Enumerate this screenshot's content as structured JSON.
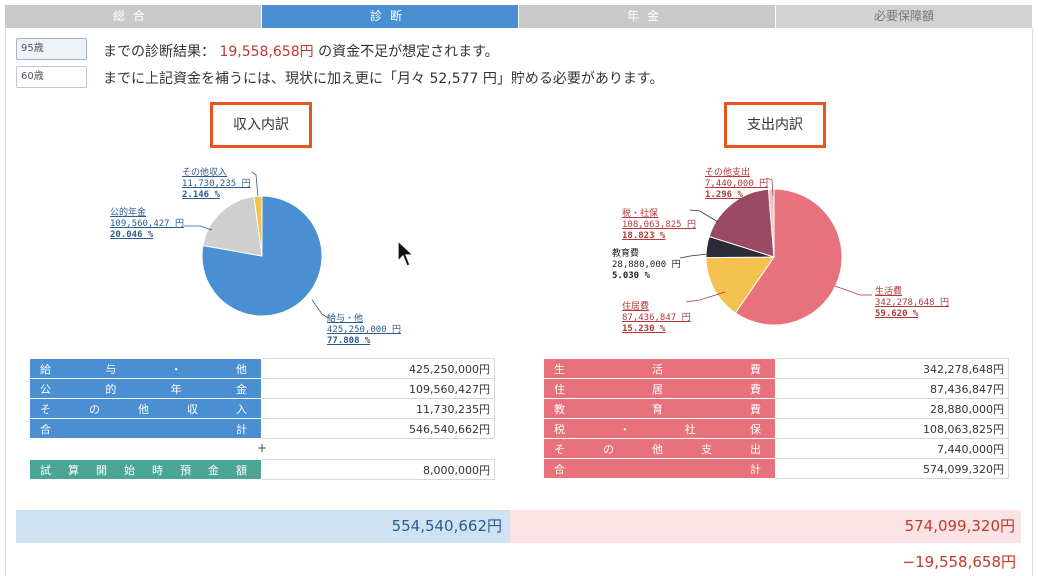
{
  "tabs": [
    {
      "label": "総合"
    },
    {
      "label": "診断"
    },
    {
      "label": "年金"
    },
    {
      "label": "必要保障額"
    }
  ],
  "age_options": [
    {
      "label": "95歳",
      "selected": true
    },
    {
      "label": "60歳",
      "selected": false
    }
  ],
  "diagnosis": {
    "line1_prefix": "までの診断結果：",
    "line1_amount": "19,558,658円",
    "line1_suffix": "の資金不足が想定されます。",
    "line2": "までに上記資金を補うには、現状に加え更に「月々 52,577 円」貯める必要があります。"
  },
  "income": {
    "title": "収入内訳",
    "slices": [
      {
        "name": "給与・他",
        "amount": "425,250,000 円",
        "percent": "77.808 %",
        "value": 77.808,
        "color": "#4a8fd1"
      },
      {
        "name": "公的年金",
        "amount": "109,560,427 円",
        "percent": "20.046 %",
        "value": 20.046,
        "color": "#cfcfcf"
      },
      {
        "name": "その他収入",
        "amount": "11,730,235 円",
        "percent": "2.146 %",
        "value": 2.146,
        "color": "#f2c14e"
      }
    ],
    "table": [
      {
        "label": "給与・他",
        "value": "425,250,000円"
      },
      {
        "label": "公的年金",
        "value": "109,560,427円"
      },
      {
        "label": "その他収入",
        "value": "11,730,235円"
      },
      {
        "label": "合計",
        "value": "546,540,662円"
      }
    ],
    "plus": "+",
    "initial_label": "試算開始時預金額",
    "initial_value": "8,000,000円"
  },
  "expense": {
    "title": "支出内訳",
    "slices": [
      {
        "name": "生活費",
        "amount": "342,278,648 円",
        "percent": "59.620 %",
        "value": 59.62,
        "color": "#e7727c"
      },
      {
        "name": "住居費",
        "amount": "87,436,847 円",
        "percent": "15.230 %",
        "value": 15.23,
        "color": "#f2c14e"
      },
      {
        "name": "教育費",
        "amount": "28,880,000 円",
        "percent": "5.030 %",
        "value": 5.03,
        "color": "#2b2b3a"
      },
      {
        "name": "税・社保",
        "amount": "108,063,825 円",
        "percent": "18.823 %",
        "value": 18.823,
        "color": "#9b4a66"
      },
      {
        "name": "その他支出",
        "amount": "7,440,000 円",
        "percent": "1.296 %",
        "value": 1.296,
        "color": "#e9c2c8"
      }
    ],
    "table": [
      {
        "label": "生活費",
        "value": "342,278,648円"
      },
      {
        "label": "住居費",
        "value": "87,436,847円"
      },
      {
        "label": "教育費",
        "value": "28,880,000円"
      },
      {
        "label": "税・社保",
        "value": "108,063,825円"
      },
      {
        "label": "その他支出",
        "value": "7,440,000円"
      },
      {
        "label": "合計",
        "value": "574,099,320円"
      }
    ]
  },
  "totals": {
    "income_total": "554,540,662円",
    "expense_total": "574,099,320円",
    "shortfall": "−19,558,658円"
  }
}
